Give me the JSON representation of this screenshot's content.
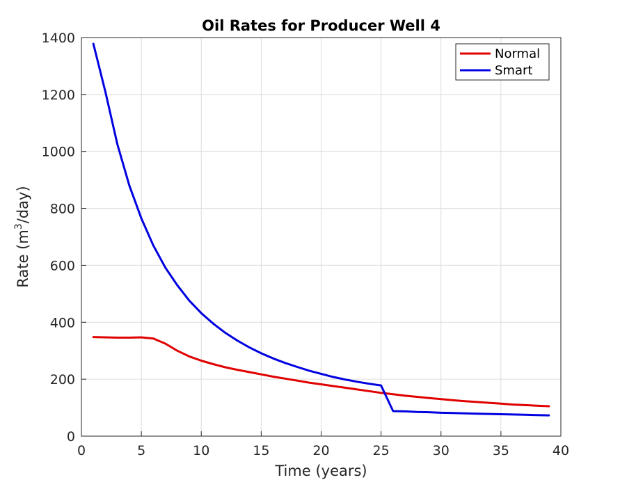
{
  "chart_data": {
    "type": "line",
    "title": "Oil Rates for Producer Well 4",
    "xlabel": "Time (years)",
    "ylabel_prefix": "Rate (m",
    "ylabel_sup": "3",
    "ylabel_suffix": "/day)",
    "xlim": [
      0,
      40
    ],
    "ylim": [
      0,
      1400
    ],
    "xticks": [
      0,
      5,
      10,
      15,
      20,
      25,
      30,
      35,
      40
    ],
    "yticks": [
      0,
      200,
      400,
      600,
      800,
      1000,
      1200,
      1400
    ],
    "grid": true,
    "legend_position": "top-right",
    "series": [
      {
        "name": "Normal",
        "color": "#e00000",
        "x": [
          1,
          2,
          3,
          4,
          5,
          6,
          7,
          8,
          9,
          10,
          11,
          12,
          13,
          14,
          15,
          16,
          17,
          18,
          19,
          20,
          21,
          22,
          23,
          24,
          25,
          26,
          27,
          28,
          29,
          30,
          31,
          32,
          33,
          34,
          35,
          36,
          37,
          38,
          39
        ],
        "y": [
          348,
          347,
          346,
          346,
          347,
          343,
          325,
          300,
          280,
          265,
          253,
          242,
          233,
          225,
          217,
          209,
          202,
          195,
          188,
          182,
          176,
          170,
          164,
          158,
          152,
          147,
          142,
          138,
          134,
          130,
          126,
          123,
          120,
          117,
          114,
          111,
          109,
          107,
          105
        ]
      },
      {
        "name": "Smart",
        "color": "#0000e0",
        "x": [
          1,
          2,
          3,
          4,
          5,
          6,
          7,
          8,
          9,
          10,
          11,
          12,
          13,
          14,
          15,
          16,
          17,
          18,
          19,
          20,
          21,
          22,
          23,
          24,
          25,
          26,
          27,
          28,
          29,
          30,
          31,
          32,
          33,
          34,
          35,
          36,
          37,
          38,
          39
        ],
        "y": [
          1378,
          1210,
          1025,
          880,
          765,
          670,
          592,
          530,
          476,
          432,
          395,
          363,
          336,
          312,
          291,
          273,
          257,
          243,
          230,
          219,
          208,
          199,
          191,
          184,
          178,
          88,
          87,
          85,
          84,
          82,
          81,
          80,
          79,
          78,
          77,
          76,
          75,
          74,
          73
        ]
      }
    ]
  }
}
